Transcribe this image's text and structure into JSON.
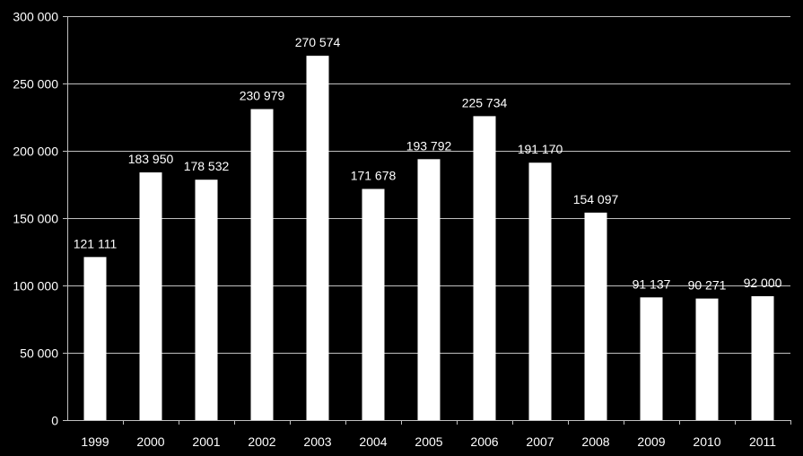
{
  "chart_data": {
    "type": "bar",
    "categories": [
      "1999",
      "2000",
      "2001",
      "2002",
      "2003",
      "2004",
      "2005",
      "2006",
      "2007",
      "2008",
      "2009",
      "2010",
      "2011"
    ],
    "values": [
      121111,
      183950,
      178532,
      230979,
      270574,
      171678,
      193792,
      225734,
      191170,
      154097,
      91137,
      90271,
      92000
    ],
    "data_labels": [
      "121 111",
      "183 950",
      "178 532",
      "230 979",
      "270 574",
      "171 678",
      "193 792",
      "225 734",
      "191 170",
      "154 097",
      "91 137",
      "90 271",
      "92 000"
    ],
    "y_ticks": [
      0,
      50000,
      100000,
      150000,
      200000,
      250000,
      300000
    ],
    "y_tick_labels": [
      "0",
      "50 000",
      "100 000",
      "150 000",
      "200 000",
      "250 000",
      "300 000"
    ],
    "title": "",
    "xlabel": "",
    "ylabel": "",
    "ylim": [
      0,
      300000
    ],
    "grid": true,
    "legend": "none",
    "colors": {
      "background": "#000000",
      "bar": "#ffffff",
      "text": "#ffffff",
      "grid": "#bfbfbf",
      "axis": "#bfbfbf"
    }
  }
}
